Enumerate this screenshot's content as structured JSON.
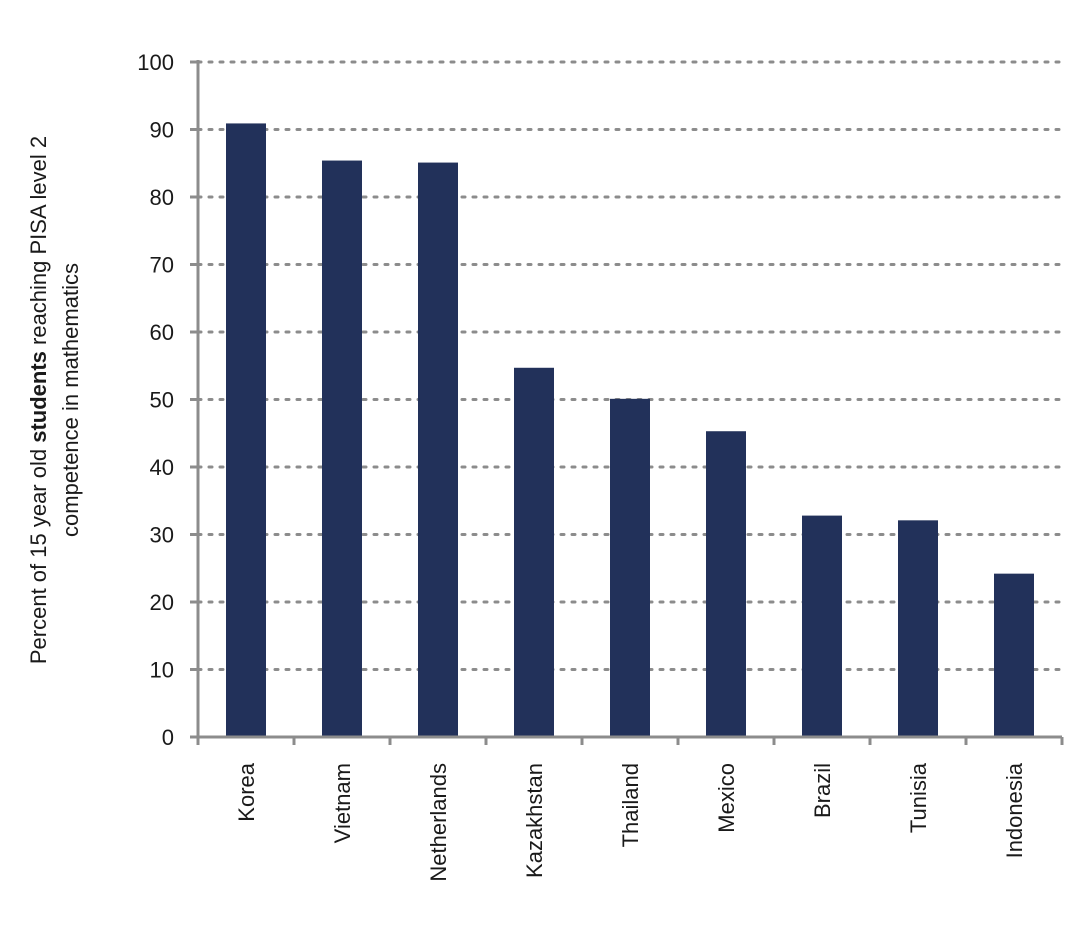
{
  "chart_data": {
    "type": "bar",
    "title": "",
    "xlabel": "",
    "ylabel_parts": [
      "Percent of 15 year old ",
      "students",
      " reaching PISA level 2"
    ],
    "ylabel_line2": "competence in mathematics",
    "categories": [
      "Korea",
      "Vietnam",
      "Netherlands",
      "Kazakhstan",
      "Thailand",
      "Mexico",
      "Brazil",
      "Tunisia",
      "Indonesia"
    ],
    "values": [
      90.9,
      85.4,
      85.1,
      54.7,
      50.1,
      45.3,
      32.8,
      32.1,
      24.2
    ],
    "ylim": [
      0,
      100
    ],
    "yticks": [
      0,
      10,
      20,
      30,
      40,
      50,
      60,
      70,
      80,
      90,
      100
    ],
    "grid": true,
    "legend": "none",
    "colors": {
      "bar": "#22315a",
      "axis": "#8c8c8c",
      "grid": "#8c8c8c"
    }
  }
}
